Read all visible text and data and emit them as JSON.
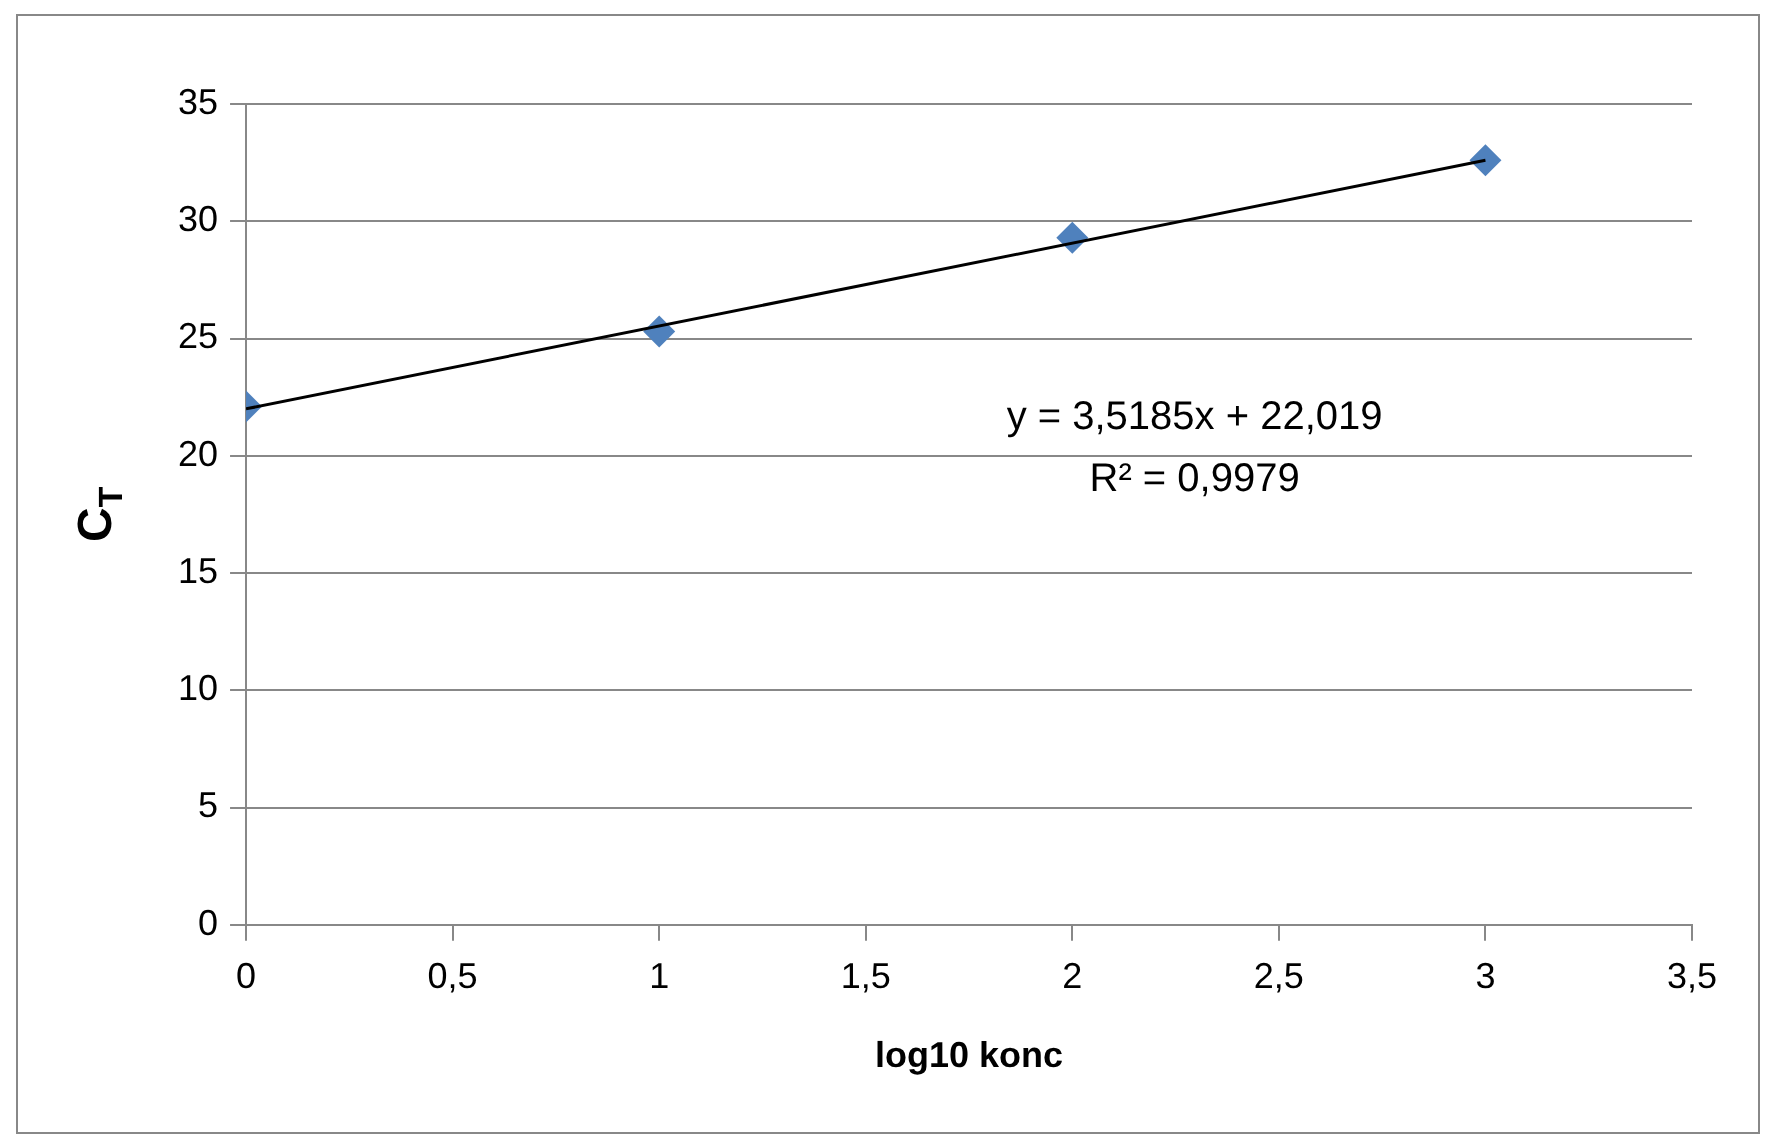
{
  "chart_data": {
    "type": "scatter",
    "xlabel": "log10 konc",
    "ylabel": "C$_{T}$",
    "x": [
      0,
      1,
      2,
      3
    ],
    "series": [
      {
        "color": "#4f81bd",
        "values": [
          22.1,
          25.3,
          29.3,
          32.6
        ],
        "marker": "diamond"
      },
      {
        "type": "line",
        "color": "#000000",
        "x": [
          0,
          3
        ],
        "values": [
          22.0,
          32.6
        ],
        "marker": "none"
      }
    ],
    "annotations": [
      "y = 3,5185x + 22,019",
      "R² = 0,9979"
    ],
    "xlim": [
      0,
      3.5
    ],
    "xticks": [
      0,
      {
        "value": 0.5,
        "label": "0,5"
      },
      1,
      {
        "value": 1.5,
        "label": "1,5"
      },
      2,
      {
        "value": 2.5,
        "label": "2,5"
      },
      3,
      {
        "value": 3.5,
        "label": "3,5"
      }
    ],
    "ylim": [
      0,
      35
    ],
    "yticks": [
      0,
      5,
      10,
      15,
      20,
      25,
      30,
      35
    ],
    "grid": "y",
    "legend": false
  }
}
